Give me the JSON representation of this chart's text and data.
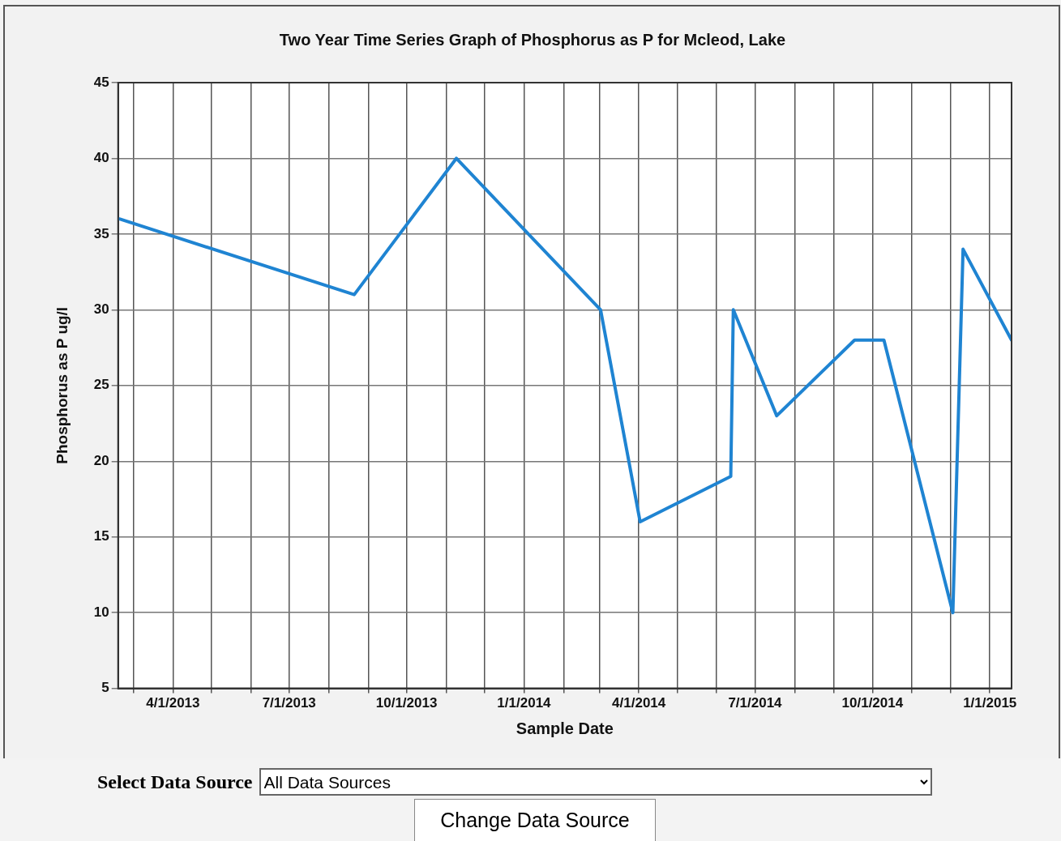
{
  "chart_data": {
    "type": "line",
    "title": "Two Year Time Series Graph of Phosphorus as P for Mcleod, Lake",
    "xlabel": "Sample Date",
    "ylabel": "Phosphorus as P ug/l",
    "x": [
      "2013-02-18",
      "2013-08-21",
      "2013-11-09",
      "2014-03-02",
      "2014-04-02",
      "2014-06-12",
      "2014-06-14",
      "2014-07-18",
      "2014-09-17",
      "2014-10-10",
      "2014-12-03",
      "2014-12-11",
      "2015-01-18"
    ],
    "series": [
      {
        "color": "#1f84d2",
        "values": [
          36,
          31,
          40,
          30,
          16,
          19,
          30,
          23,
          28,
          28,
          10,
          34,
          28
        ]
      }
    ],
    "xlim": [
      "2013-02-17",
      "2015-01-18"
    ],
    "xticks": [
      {
        "value": "2013-03-01",
        "label": null
      },
      {
        "value": "2013-04-01",
        "label": "4/1/2013"
      },
      {
        "value": "2013-05-01",
        "label": null
      },
      {
        "value": "2013-06-01",
        "label": null
      },
      {
        "value": "2013-07-01",
        "label": "7/1/2013"
      },
      {
        "value": "2013-08-01",
        "label": null
      },
      {
        "value": "2013-09-01",
        "label": null
      },
      {
        "value": "2013-10-01",
        "label": "10/1/2013"
      },
      {
        "value": "2013-11-01",
        "label": null
      },
      {
        "value": "2013-12-01",
        "label": null
      },
      {
        "value": "2014-01-01",
        "label": "1/1/2014"
      },
      {
        "value": "2014-02-01",
        "label": null
      },
      {
        "value": "2014-03-01",
        "label": null
      },
      {
        "value": "2014-04-01",
        "label": "4/1/2014"
      },
      {
        "value": "2014-05-01",
        "label": null
      },
      {
        "value": "2014-06-01",
        "label": null
      },
      {
        "value": "2014-07-01",
        "label": "7/1/2014"
      },
      {
        "value": "2014-08-01",
        "label": null
      },
      {
        "value": "2014-09-01",
        "label": null
      },
      {
        "value": "2014-10-01",
        "label": "10/1/2014"
      },
      {
        "value": "2014-11-01",
        "label": null
      },
      {
        "value": "2014-12-01",
        "label": null
      },
      {
        "value": "2015-01-01",
        "label": "1/1/2015"
      }
    ],
    "ylim": [
      5,
      45
    ],
    "yticks": [
      5,
      10,
      15,
      20,
      25,
      30,
      35,
      40,
      45
    ],
    "grid": true,
    "marker": "none",
    "line_style": "solid",
    "legend": false,
    "annotations": [
      "Select Data Source",
      "All Data Sources",
      "Change Data Source"
    ]
  }
}
